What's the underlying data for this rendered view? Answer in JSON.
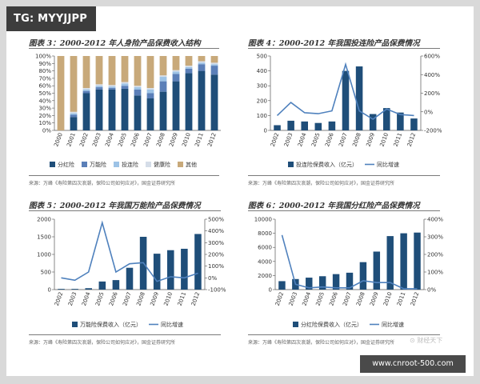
{
  "tag": "TG: MYYJJPP",
  "watermark": "www.cnroot-500.com",
  "corner_logo": "⊙ 财经天下",
  "colors": {
    "dark": "#1f4e79",
    "mid": "#5b7fb8",
    "light": "#9dc3e6",
    "pale": "#b7c9dd",
    "tan": "#c8a97a",
    "line": "#4f81bd"
  },
  "panels": [
    {
      "title": "图表 3：2000-2012 年人身险产品保费收入结构",
      "source": "来源：万峰《寿险第四次浪潮，保险公司如何应对》，国金证券研究所"
    },
    {
      "title": "图表 4：2000-2012 年我国投连险产品保费情况",
      "source": "来源：万峰《寿险第四次浪潮，保险公司如何应对》，国金证券研究所"
    },
    {
      "title": "图表 5：2000-2012 年我国万能险产品保费情况",
      "source": "来源：万峰《寿险第四次浪潮，保险公司如何应对》，国金证券研究所"
    },
    {
      "title": "图表 6：2000-2012 年我国分红险产品保费情况",
      "source": "来源：万峰《寿险第四次浪潮，保险公司如何应对》，国金证券研究所"
    }
  ],
  "chart_data": [
    {
      "type": "bar",
      "stacked": true,
      "categories": [
        "2000",
        "2001",
        "2002",
        "2003",
        "2004",
        "2005",
        "2006",
        "2007",
        "2008",
        "2009",
        "2010",
        "2011",
        "2012"
      ],
      "yticks": [
        "0%",
        "10%",
        "20%",
        "30%",
        "40%",
        "50%",
        "60%",
        "70%",
        "80%",
        "90%",
        "100%"
      ],
      "ylim": [
        0,
        100
      ],
      "legend_position": "bottom",
      "grid": false,
      "series": [
        {
          "name": "分红险",
          "color": "#1f4e79",
          "values": [
            0,
            18,
            50,
            55,
            55,
            56,
            47,
            43,
            52,
            66,
            77,
            80,
            75
          ]
        },
        {
          "name": "万能险",
          "color": "#5b7fb8",
          "values": [
            0,
            3,
            3,
            3,
            2,
            4,
            8,
            7,
            14,
            10,
            6,
            9,
            12
          ]
        },
        {
          "name": "投连险",
          "color": "#9dc3e6",
          "values": [
            0,
            2,
            2,
            2,
            2,
            3,
            3,
            5,
            6,
            3,
            2,
            2,
            2
          ]
        },
        {
          "name": "健康险",
          "color": "#d5dde8",
          "values": [
            0,
            2,
            2,
            2,
            2,
            2,
            2,
            2,
            2,
            2,
            2,
            2,
            2
          ]
        },
        {
          "name": "其他",
          "color": "#c8a97a",
          "values": [
            100,
            75,
            43,
            38,
            39,
            35,
            40,
            43,
            26,
            19,
            13,
            7,
            9
          ]
        }
      ]
    },
    {
      "type": "bar",
      "categories": [
        "2002",
        "2003",
        "2004",
        "2005",
        "2006",
        "2007",
        "2008",
        "2009",
        "2010",
        "2011",
        "2012"
      ],
      "yticks": [
        "0",
        "100",
        "200",
        "300",
        "400",
        "500"
      ],
      "ylim": [
        0,
        500
      ],
      "y2ticks": [
        "-200%",
        "0%",
        "200%",
        "400%",
        "600%"
      ],
      "y2lim": [
        -200,
        600
      ],
      "legend_position": "bottom",
      "grid": false,
      "series": [
        {
          "name": "投连险保费收入（亿元）",
          "type": "bar",
          "axis": "left",
          "color": "#1f4e79",
          "values": [
            35,
            65,
            60,
            50,
            60,
            400,
            430,
            110,
            150,
            120,
            80
          ]
        },
        {
          "name": "同比增速",
          "type": "line",
          "axis": "right",
          "color": "#4f81bd",
          "values": [
            -40,
            100,
            -10,
            -20,
            10,
            510,
            10,
            -80,
            30,
            -30,
            -40
          ]
        }
      ]
    },
    {
      "type": "bar",
      "categories": [
        "2002",
        "2003",
        "2004",
        "2005",
        "2006",
        "2007",
        "2008",
        "2009",
        "2010",
        "2011",
        "2012"
      ],
      "yticks": [
        "0",
        "500",
        "1000",
        "1500",
        "2000"
      ],
      "ylim": [
        0,
        2000
      ],
      "y2ticks": [
        "-100%",
        "0%",
        "100%",
        "200%",
        "300%",
        "400%",
        "500%"
      ],
      "y2lim": [
        -100,
        500
      ],
      "legend_position": "bottom",
      "grid": false,
      "series": [
        {
          "name": "万能险保费收入（亿元）",
          "type": "bar",
          "axis": "left",
          "color": "#1f4e79",
          "values": [
            20,
            20,
            40,
            230,
            270,
            620,
            1500,
            1020,
            1120,
            1160,
            1580
          ]
        },
        {
          "name": "同比增速",
          "type": "line",
          "axis": "right",
          "color": "#4f81bd",
          "values": [
            0,
            -20,
            50,
            470,
            50,
            120,
            130,
            -30,
            10,
            0,
            40
          ]
        }
      ]
    },
    {
      "type": "bar",
      "categories": [
        "2002",
        "2003",
        "2004",
        "2005",
        "2006",
        "2007",
        "2008",
        "2009",
        "2010",
        "2011",
        "2012"
      ],
      "yticks": [
        "0",
        "2000",
        "4000",
        "6000",
        "8000",
        "10000"
      ],
      "ylim": [
        0,
        10000
      ],
      "y2ticks": [
        "0%",
        "100%",
        "200%",
        "300%",
        "400%"
      ],
      "y2lim": [
        0,
        400
      ],
      "legend_position": "bottom",
      "grid": false,
      "series": [
        {
          "name": "分红险保费收入（亿元）",
          "type": "bar",
          "axis": "left",
          "color": "#1f4e79",
          "values": [
            1200,
            1500,
            1700,
            1900,
            2200,
            2400,
            3900,
            5400,
            7600,
            8000,
            8100
          ]
        },
        {
          "name": "同比增速",
          "type": "line",
          "axis": "right",
          "color": "#4f81bd",
          "values": [
            310,
            30,
            10,
            15,
            10,
            10,
            50,
            40,
            40,
            5,
            5
          ]
        }
      ]
    }
  ]
}
